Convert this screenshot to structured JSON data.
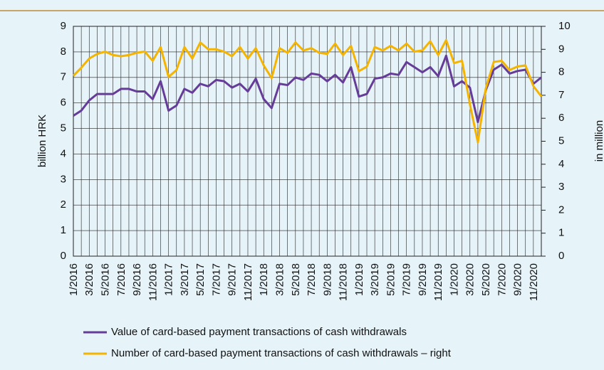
{
  "chart_data": {
    "type": "line",
    "categories": [
      "1/2016",
      null,
      "3/2016",
      null,
      "5/2016",
      null,
      "7/2016",
      null,
      "9/2016",
      null,
      "11/2016",
      null,
      "1/2017",
      null,
      "3/2017",
      null,
      "5/2017",
      null,
      "7/2017",
      null,
      "9/2017",
      null,
      "11/2017",
      null,
      "1/2018",
      null,
      "3/2018",
      null,
      "5/2018",
      null,
      "7/2018",
      null,
      "9/2018",
      null,
      "11/2018",
      null,
      "1/2019",
      null,
      "3/2019",
      null,
      "5/2019",
      null,
      "7/2019",
      null,
      "9/2019",
      null,
      "11/2019",
      null,
      "1/2020",
      null,
      "3/2020",
      null,
      "5/2020",
      null,
      "7/2020",
      null,
      "9/2020",
      null,
      "11/2020",
      null
    ],
    "series": [
      {
        "name": "Value of card-based payment transactions of cash withdrawals",
        "color": "#663c99",
        "values": [
          5.5,
          5.7,
          6.1,
          6.35,
          6.35,
          6.35,
          6.55,
          6.55,
          6.45,
          6.45,
          6.15,
          6.85,
          5.7,
          5.9,
          6.55,
          6.4,
          6.75,
          6.65,
          6.9,
          6.85,
          6.6,
          6.75,
          6.45,
          6.95,
          6.15,
          5.8,
          6.75,
          6.7,
          7.0,
          6.9,
          7.15,
          7.1,
          6.85,
          7.1,
          6.8,
          7.4,
          6.25,
          6.35,
          6.95,
          7.0,
          7.15,
          7.1,
          7.6,
          7.4,
          7.2,
          7.4,
          7.05,
          7.85,
          6.65,
          6.85,
          6.6,
          5.25,
          6.5,
          7.3,
          7.5,
          7.15,
          7.25,
          7.3,
          6.75,
          7.0
        ]
      },
      {
        "name": "Number of card-based payment transactions of cash withdrawals – right",
        "color": "#f4b400",
        "axis": "y2",
        "values": [
          7.85,
          8.2,
          8.6,
          8.8,
          8.9,
          8.75,
          8.7,
          8.75,
          8.85,
          8.9,
          8.5,
          9.1,
          7.8,
          8.1,
          9.1,
          8.6,
          9.3,
          9.0,
          9.0,
          8.9,
          8.7,
          9.1,
          8.6,
          9.05,
          8.3,
          7.75,
          9.05,
          8.85,
          9.3,
          8.95,
          9.05,
          8.85,
          8.8,
          9.25,
          8.75,
          9.15,
          8.05,
          8.25,
          9.1,
          8.95,
          9.15,
          8.95,
          9.25,
          8.9,
          8.95,
          9.35,
          8.75,
          9.4,
          8.4,
          8.5,
          6.6,
          4.95,
          7.3,
          8.45,
          8.5,
          8.1,
          8.25,
          8.3,
          7.4,
          6.95
        ]
      }
    ],
    "ylabel": "billion HRK",
    "y2label": "in million",
    "ylim": [
      0,
      9
    ],
    "yticks": [
      0,
      1,
      2,
      3,
      4,
      5,
      6,
      7,
      8,
      9
    ],
    "y2lim": [
      0,
      10
    ],
    "y2ticks": [
      0,
      1,
      2,
      3,
      4,
      5,
      6,
      7,
      8,
      9,
      10
    ],
    "grid": true
  }
}
